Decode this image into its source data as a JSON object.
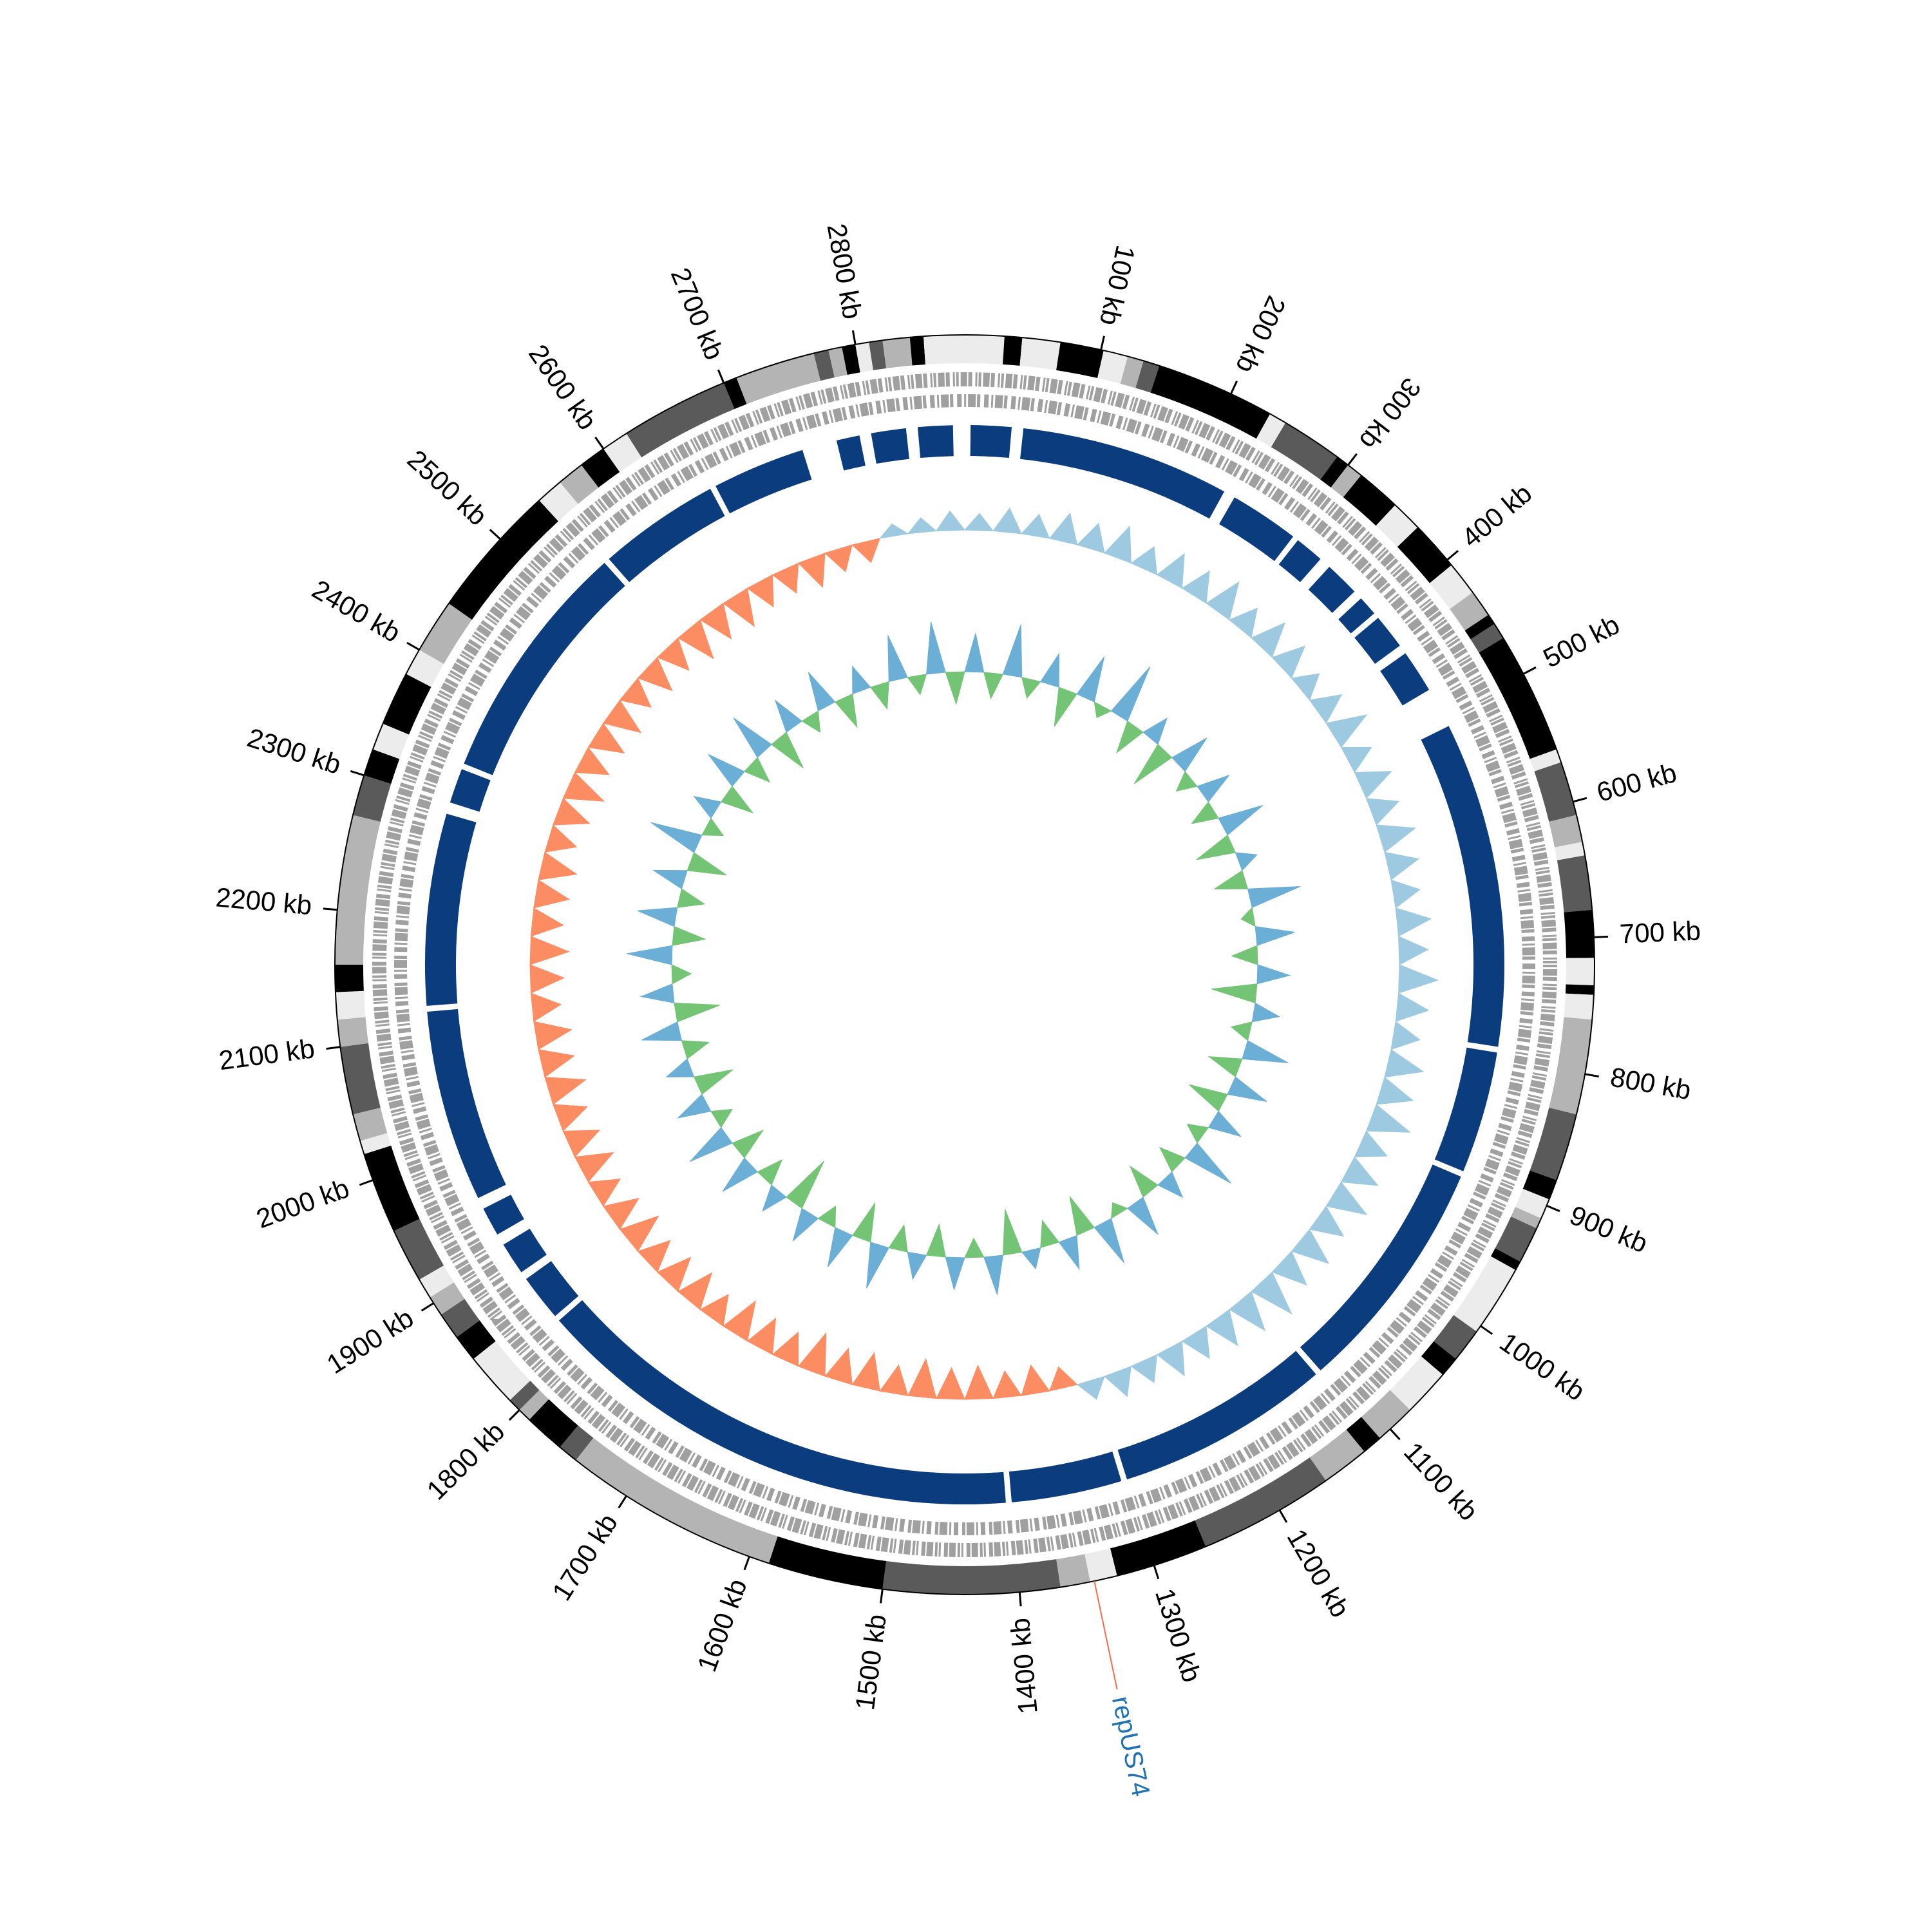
{
  "chart_data": {
    "type": "circos",
    "xlim": [
      0,
      2880
    ],
    "xticks": [
      {
        "value": 100,
        "label": "100 kb"
      },
      {
        "value": 200,
        "label": "200 kb"
      },
      {
        "value": 300,
        "label": "300 kb"
      },
      {
        "value": 400,
        "label": "400 kb"
      },
      {
        "value": 500,
        "label": "500 kb"
      },
      {
        "value": 600,
        "label": "600 kb"
      },
      {
        "value": 700,
        "label": "700 kb"
      },
      {
        "value": 800,
        "label": "800 kb"
      },
      {
        "value": 900,
        "label": "900 kb"
      },
      {
        "value": 1000,
        "label": "1000 kb"
      },
      {
        "value": 1100,
        "label": "1100 kb"
      },
      {
        "value": 1200,
        "label": "1200 kb"
      },
      {
        "value": 1300,
        "label": "1300 kb"
      },
      {
        "value": 1400,
        "label": "1400 kb"
      },
      {
        "value": 1500,
        "label": "1500 kb"
      },
      {
        "value": 1600,
        "label": "1600 kb"
      },
      {
        "value": 1700,
        "label": "1700 kb"
      },
      {
        "value": 1800,
        "label": "1800 kb"
      },
      {
        "value": 1900,
        "label": "1900 kb"
      },
      {
        "value": 2000,
        "label": "2000 kb"
      },
      {
        "value": 2100,
        "label": "2100 kb"
      },
      {
        "value": 2200,
        "label": "2200 kb"
      },
      {
        "value": 2300,
        "label": "2300 kb"
      },
      {
        "value": 2400,
        "label": "2400 kb"
      },
      {
        "value": 2500,
        "label": "2500 kb"
      },
      {
        "value": 2600,
        "label": "2600 kb"
      },
      {
        "value": 2700,
        "label": "2700 kb"
      },
      {
        "value": 2800,
        "label": "2800 kb"
      }
    ],
    "bands": [
      {
        "start": 0,
        "end": 29,
        "color": "#ececec"
      },
      {
        "start": 29,
        "end": 42,
        "color": "#000000"
      },
      {
        "start": 42,
        "end": 70,
        "color": "#ececec"
      },
      {
        "start": 70,
        "end": 102,
        "color": "#000000"
      },
      {
        "start": 102,
        "end": 120,
        "color": "#ececec"
      },
      {
        "start": 120,
        "end": 132,
        "color": "#b4b4b4"
      },
      {
        "start": 132,
        "end": 144,
        "color": "#5a5a5a"
      },
      {
        "start": 144,
        "end": 232,
        "color": "#000000"
      },
      {
        "start": 232,
        "end": 245,
        "color": "#ececec"
      },
      {
        "start": 245,
        "end": 290,
        "color": "#5a5a5a"
      },
      {
        "start": 290,
        "end": 300,
        "color": "#000000"
      },
      {
        "start": 300,
        "end": 312,
        "color": "#b4b4b4"
      },
      {
        "start": 312,
        "end": 345,
        "color": "#000000"
      },
      {
        "start": 345,
        "end": 368,
        "color": "#ececec"
      },
      {
        "start": 368,
        "end": 405,
        "color": "#000000"
      },
      {
        "start": 405,
        "end": 430,
        "color": "#ececec"
      },
      {
        "start": 430,
        "end": 450,
        "color": "#b4b4b4"
      },
      {
        "start": 450,
        "end": 458,
        "color": "#000000"
      },
      {
        "start": 458,
        "end": 470,
        "color": "#5a5a5a"
      },
      {
        "start": 470,
        "end": 560,
        "color": "#000000"
      },
      {
        "start": 560,
        "end": 570,
        "color": "#ececec"
      },
      {
        "start": 570,
        "end": 610,
        "color": "#5a5a5a"
      },
      {
        "start": 610,
        "end": 630,
        "color": "#b4b4b4"
      },
      {
        "start": 630,
        "end": 640,
        "color": "#ececec"
      },
      {
        "start": 640,
        "end": 680,
        "color": "#5a5a5a"
      },
      {
        "start": 680,
        "end": 715,
        "color": "#000000"
      },
      {
        "start": 715,
        "end": 735,
        "color": "#ececec"
      },
      {
        "start": 735,
        "end": 742,
        "color": "#000000"
      },
      {
        "start": 742,
        "end": 760,
        "color": "#ececec"
      },
      {
        "start": 760,
        "end": 830,
        "color": "#b4b4b4"
      },
      {
        "start": 830,
        "end": 880,
        "color": "#5a5a5a"
      },
      {
        "start": 880,
        "end": 895,
        "color": "#000000"
      },
      {
        "start": 895,
        "end": 910,
        "color": "#ececec"
      },
      {
        "start": 910,
        "end": 918,
        "color": "#b4b4b4"
      },
      {
        "start": 918,
        "end": 945,
        "color": "#5a5a5a"
      },
      {
        "start": 945,
        "end": 952,
        "color": "#000000"
      },
      {
        "start": 952,
        "end": 1005,
        "color": "#ececec"
      },
      {
        "start": 1005,
        "end": 1030,
        "color": "#5a5a5a"
      },
      {
        "start": 1030,
        "end": 1045,
        "color": "#000000"
      },
      {
        "start": 1045,
        "end": 1080,
        "color": "#ececec"
      },
      {
        "start": 1080,
        "end": 1110,
        "color": "#b4b4b4"
      },
      {
        "start": 1110,
        "end": 1125,
        "color": "#000000"
      },
      {
        "start": 1125,
        "end": 1160,
        "color": "#b4b4b4"
      },
      {
        "start": 1160,
        "end": 1260,
        "color": "#5a5a5a"
      },
      {
        "start": 1260,
        "end": 1328,
        "color": "#000000"
      },
      {
        "start": 1328,
        "end": 1348,
        "color": "#ececec"
      },
      {
        "start": 1348,
        "end": 1370,
        "color": "#b4b4b4"
      },
      {
        "start": 1370,
        "end": 1500,
        "color": "#5a5a5a"
      },
      {
        "start": 1500,
        "end": 1585,
        "color": "#000000"
      },
      {
        "start": 1585,
        "end": 1745,
        "color": "#b4b4b4"
      },
      {
        "start": 1745,
        "end": 1760,
        "color": "#5a5a5a"
      },
      {
        "start": 1760,
        "end": 1790,
        "color": "#000000"
      },
      {
        "start": 1790,
        "end": 1800,
        "color": "#b4b4b4"
      },
      {
        "start": 1800,
        "end": 1810,
        "color": "#5a5a5a"
      },
      {
        "start": 1810,
        "end": 1850,
        "color": "#ececec"
      },
      {
        "start": 1850,
        "end": 1870,
        "color": "#000000"
      },
      {
        "start": 1870,
        "end": 1890,
        "color": "#5a5a5a"
      },
      {
        "start": 1890,
        "end": 1905,
        "color": "#b4b4b4"
      },
      {
        "start": 1905,
        "end": 1920,
        "color": "#ececec"
      },
      {
        "start": 1920,
        "end": 1960,
        "color": "#5a5a5a"
      },
      {
        "start": 1960,
        "end": 2020,
        "color": "#000000"
      },
      {
        "start": 2020,
        "end": 2030,
        "color": "#ececec"
      },
      {
        "start": 2030,
        "end": 2050,
        "color": "#b4b4b4"
      },
      {
        "start": 2050,
        "end": 2100,
        "color": "#5a5a5a"
      },
      {
        "start": 2100,
        "end": 2120,
        "color": "#b4b4b4"
      },
      {
        "start": 2120,
        "end": 2140,
        "color": "#ececec"
      },
      {
        "start": 2140,
        "end": 2160,
        "color": "#000000"
      },
      {
        "start": 2160,
        "end": 2270,
        "color": "#b4b4b4"
      },
      {
        "start": 2270,
        "end": 2300,
        "color": "#5a5a5a"
      },
      {
        "start": 2300,
        "end": 2320,
        "color": "#000000"
      },
      {
        "start": 2320,
        "end": 2340,
        "color": "#ececec"
      },
      {
        "start": 2340,
        "end": 2380,
        "color": "#000000"
      },
      {
        "start": 2380,
        "end": 2400,
        "color": "#ececec"
      },
      {
        "start": 2400,
        "end": 2440,
        "color": "#b4b4b4"
      },
      {
        "start": 2440,
        "end": 2540,
        "color": "#000000"
      },
      {
        "start": 2540,
        "end": 2560,
        "color": "#ececec"
      },
      {
        "start": 2560,
        "end": 2580,
        "color": "#b4b4b4"
      },
      {
        "start": 2580,
        "end": 2600,
        "color": "#000000"
      },
      {
        "start": 2600,
        "end": 2620,
        "color": "#ececec"
      },
      {
        "start": 2620,
        "end": 2700,
        "color": "#5a5a5a"
      },
      {
        "start": 2700,
        "end": 2710,
        "color": "#000000"
      },
      {
        "start": 2710,
        "end": 2769,
        "color": "#b4b4b4"
      },
      {
        "start": 2769,
        "end": 2780,
        "color": "#5a5a5a"
      },
      {
        "start": 2780,
        "end": 2790,
        "color": "#b4b4b4"
      },
      {
        "start": 2790,
        "end": 2800,
        "color": "#000000"
      },
      {
        "start": 2800,
        "end": 2810,
        "color": "#ececec"
      },
      {
        "start": 2810,
        "end": 2820,
        "color": "#5a5a5a"
      },
      {
        "start": 2820,
        "end": 2840,
        "color": "#b4b4b4"
      },
      {
        "start": 2840,
        "end": 2850,
        "color": "#000000"
      },
      {
        "start": 2850,
        "end": 2880,
        "color": "#ececec"
      }
    ],
    "contigs": {
      "color": "#0b3c7d",
      "segments": [
        [
          5,
          40
        ],
        [
          50,
          230
        ],
        [
          240,
          300
        ],
        [
          305,
          330
        ],
        [
          340,
          370
        ],
        [
          378,
          395
        ],
        [
          400,
          430
        ],
        [
          438,
          475
        ],
        [
          510,
          790
        ],
        [
          795,
          900
        ],
        [
          905,
          1110
        ],
        [
          1115,
          1300
        ],
        [
          1305,
          1400
        ],
        [
          1405,
          1830
        ],
        [
          1835,
          1875
        ],
        [
          1882,
          1910
        ],
        [
          1920,
          1945
        ],
        [
          1955,
          2120
        ],
        [
          2125,
          2290
        ],
        [
          2300,
          2330
        ],
        [
          2335,
          2545
        ],
        [
          2550,
          2655
        ],
        [
          2660,
          2740
        ],
        [
          2770,
          2790
        ],
        [
          2800,
          2830
        ],
        [
          2840,
          2870
        ]
      ]
    },
    "x": [
      0,
      30,
      60,
      90,
      120,
      150,
      180,
      210,
      240,
      270,
      300,
      330,
      360,
      390,
      420,
      450,
      480,
      510,
      540,
      570,
      600,
      630,
      660,
      690,
      720,
      750,
      780,
      810,
      840,
      870,
      900,
      930,
      960,
      990,
      1020,
      1050,
      1080,
      1110,
      1140,
      1170,
      1200,
      1230,
      1260,
      1290,
      1320,
      1350,
      1380,
      1410,
      1440,
      1470,
      1500,
      1530,
      1560,
      1590,
      1620,
      1650,
      1680,
      1710,
      1740,
      1770,
      1800,
      1830,
      1860,
      1890,
      1920,
      1950,
      1980,
      2010,
      2040,
      2070,
      2100,
      2130,
      2160,
      2190,
      2220,
      2250,
      2280,
      2310,
      2340,
      2370,
      2400,
      2430,
      2460,
      2490,
      2520,
      2550,
      2580,
      2610,
      2640,
      2670,
      2700,
      2730,
      2760,
      2790,
      2820,
      2850
    ],
    "tracks": [
      {
        "pos_color": "#9ecae1",
        "neg_color": "#fc8d62",
        "ylim": [
          -1,
          1
        ],
        "values": [
          0.35,
          0.5,
          0.45,
          0.6,
          0.55,
          0.7,
          0.5,
          0.65,
          0.6,
          0.75,
          0.55,
          0.7,
          0.65,
          0.5,
          0.6,
          0.8,
          0.55,
          0.7,
          0.6,
          0.75,
          0.65,
          0.55,
          0.7,
          0.6,
          0.8,
          0.65,
          0.55,
          0.75,
          0.7,
          0.85,
          0.6,
          0.7,
          0.8,
          0.65,
          0.75,
          0.7,
          0.9,
          0.8,
          0.7,
          0.6,
          0.65,
          0.5,
          0.55,
          0.4,
          -0.45,
          -0.6,
          -0.55,
          -0.7,
          -0.65,
          -0.8,
          -0.6,
          -0.75,
          -0.7,
          -0.85,
          -0.65,
          -0.7,
          -0.8,
          -0.6,
          -0.75,
          -0.7,
          -0.65,
          -0.8,
          -0.7,
          -0.6,
          -0.75,
          -0.7,
          -0.65,
          -0.8,
          -0.7,
          -0.75,
          -0.6,
          -0.7,
          -0.8,
          -0.65,
          -0.7,
          -0.75,
          -0.6,
          -0.7,
          -0.8,
          -0.65,
          -0.7,
          -0.75,
          -0.6,
          -0.7,
          -0.65,
          -0.8,
          -0.7,
          -0.75,
          -0.6,
          -0.55,
          -0.65,
          -0.5,
          -0.45,
          0.25,
          0.3,
          0.4
        ]
      },
      {
        "pos_color": "#6baed6",
        "neg_color": "#74c476",
        "ylim": [
          -1,
          1
        ],
        "values": [
          0.6,
          -0.4,
          0.8,
          -0.3,
          0.5,
          -0.6,
          0.7,
          -0.2,
          0.9,
          -0.5,
          0.4,
          -0.7,
          0.6,
          -0.3,
          0.5,
          -0.4,
          0.7,
          -0.6,
          0.3,
          -0.5,
          0.8,
          -0.2,
          0.6,
          -0.4,
          0.5,
          -0.7,
          0.4,
          -0.3,
          0.7,
          -0.5,
          0.6,
          -0.6,
          0.5,
          -0.3,
          0.8,
          -0.4,
          0.4,
          -0.5,
          0.6,
          -0.2,
          0.7,
          -0.6,
          0.5,
          -0.4,
          0.3,
          -0.7,
          0.6,
          -0.3,
          0.5,
          -0.5,
          0.4,
          -0.4,
          0.7,
          -0.6,
          0.6,
          -0.3,
          0.5,
          -0.8,
          0.4,
          -0.4,
          0.6,
          -0.5,
          0.7,
          -0.3,
          0.5,
          -0.6,
          0.4,
          -0.4,
          0.6,
          -0.7,
          0.5,
          -0.3,
          0.7,
          -0.5,
          0.6,
          -0.4,
          0.5,
          -0.6,
          0.8,
          -0.3,
          0.4,
          -0.5,
          0.6,
          -0.4,
          0.7,
          -0.6,
          0.5,
          -0.3,
          0.6,
          -0.5,
          0.4,
          -0.4,
          0.7,
          -0.3,
          0.8,
          -0.5
        ]
      }
    ],
    "annotations": [
      {
        "text": "repUS74",
        "position": 1345,
        "color": "#2171b5",
        "line_color": "#fb6a4a"
      }
    ]
  }
}
